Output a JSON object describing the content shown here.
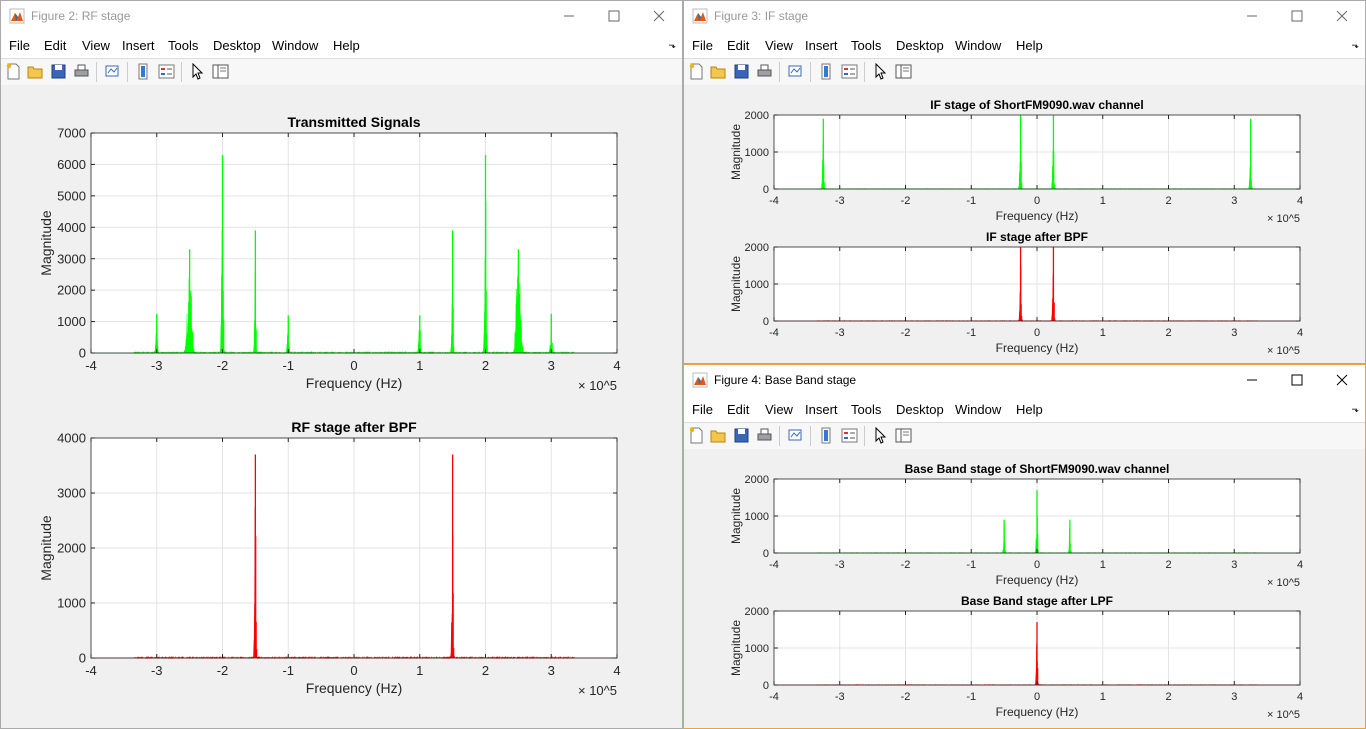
{
  "menu_labels": [
    "File",
    "Edit",
    "View",
    "Insert",
    "Tools",
    "Desktop",
    "Window",
    "Help"
  ],
  "colors": {
    "green": "#00ff00",
    "red": "#ff0000",
    "axis": "#262626",
    "grid": "#e3e3e3"
  },
  "windows": [
    {
      "title": "Figure 2: RF stage",
      "icon": "matlab-icon"
    },
    {
      "title": "Figure 3: IF stage",
      "icon": "matlab-icon"
    },
    {
      "title": "Figure 4: Base Band stage",
      "icon": "matlab-icon"
    }
  ],
  "toolbar_icons": [
    "new-figure-icon",
    "open-file-icon",
    "save-icon",
    "print-icon",
    "link-plot-icon",
    "colorbar-icon",
    "legend-icon",
    "edit-plot-icon",
    "property-inspector-icon"
  ],
  "chart_data": [
    {
      "type": "line",
      "title": "Transmitted Signals",
      "xlabel": "Frequency (Hz)",
      "ylabel": "Magnitude",
      "xlim": [
        -4,
        4
      ],
      "ylim": [
        0,
        7000
      ],
      "xticks": [
        -4,
        -3,
        -2,
        -1,
        0,
        1,
        2,
        3,
        4
      ],
      "yticks": [
        0,
        1000,
        2000,
        3000,
        4000,
        5000,
        6000,
        7000
      ],
      "exponent": "× 10^5",
      "grid": true,
      "color": "green",
      "peaks": [
        {
          "x": -3.0,
          "y": 1250,
          "w": 0.05
        },
        {
          "x": -2.5,
          "y": 3300,
          "w": 0.12
        },
        {
          "x": -2.0,
          "y": 6300,
          "w": 0.05
        },
        {
          "x": -1.5,
          "y": 3900,
          "w": 0.04
        },
        {
          "x": -1.0,
          "y": 1200,
          "w": 0.05
        },
        {
          "x": 1.0,
          "y": 1200,
          "w": 0.05
        },
        {
          "x": 1.5,
          "y": 3900,
          "w": 0.04
        },
        {
          "x": 2.0,
          "y": 6300,
          "w": 0.05
        },
        {
          "x": 2.5,
          "y": 3300,
          "w": 0.12
        },
        {
          "x": 3.0,
          "y": 1250,
          "w": 0.05
        }
      ]
    },
    {
      "type": "line",
      "title": "RF stage after BPF",
      "xlabel": "Frequency (Hz)",
      "ylabel": "Magnitude",
      "xlim": [
        -4,
        4
      ],
      "ylim": [
        0,
        4000
      ],
      "xticks": [
        -4,
        -3,
        -2,
        -1,
        0,
        1,
        2,
        3,
        4
      ],
      "yticks": [
        0,
        1000,
        2000,
        3000,
        4000
      ],
      "exponent": "× 10^5",
      "grid": true,
      "color": "red",
      "peaks": [
        {
          "x": -1.5,
          "y": 3700,
          "w": 0.04
        },
        {
          "x": 1.5,
          "y": 3700,
          "w": 0.04
        }
      ]
    },
    {
      "type": "line",
      "title": "IF stage of ShortFM9090.wav channel",
      "xlabel": "Frequency (Hz)",
      "ylabel": "Magnitude",
      "xlim": [
        -4,
        4
      ],
      "ylim": [
        0,
        2000
      ],
      "xticks": [
        -4,
        -3,
        -2,
        -1,
        0,
        1,
        2,
        3,
        4
      ],
      "yticks": [
        0,
        1000,
        2000
      ],
      "exponent": "× 10^5",
      "grid": true,
      "color": "green",
      "peaks": [
        {
          "x": -3.25,
          "y": 1900,
          "w": 0.04
        },
        {
          "x": -0.25,
          "y": 2100,
          "w": 0.04
        },
        {
          "x": 0.25,
          "y": 2100,
          "w": 0.04
        },
        {
          "x": 3.25,
          "y": 1900,
          "w": 0.04
        }
      ]
    },
    {
      "type": "line",
      "title": "IF stage after BPF",
      "xlabel": "Frequency (Hz)",
      "ylabel": "Magnitude",
      "xlim": [
        -4,
        4
      ],
      "ylim": [
        0,
        2000
      ],
      "xticks": [
        -4,
        -3,
        -2,
        -1,
        0,
        1,
        2,
        3,
        4
      ],
      "yticks": [
        0,
        1000,
        2000
      ],
      "exponent": "× 10^5",
      "grid": true,
      "color": "red",
      "peaks": [
        {
          "x": -0.25,
          "y": 2000,
          "w": 0.04
        },
        {
          "x": 0.25,
          "y": 2000,
          "w": 0.04
        }
      ]
    },
    {
      "type": "line",
      "title": "Base Band stage of ShortFM9090.wav channel",
      "xlabel": "Frequency (Hz)",
      "ylabel": "Magnitude",
      "xlim": [
        -4,
        4
      ],
      "ylim": [
        0,
        2000
      ],
      "xticks": [
        -4,
        -3,
        -2,
        -1,
        0,
        1,
        2,
        3,
        4
      ],
      "yticks": [
        0,
        1000,
        2000
      ],
      "exponent": "× 10^5",
      "grid": true,
      "color": "green",
      "peaks": [
        {
          "x": -0.5,
          "y": 900,
          "w": 0.04
        },
        {
          "x": 0.0,
          "y": 1700,
          "w": 0.04
        },
        {
          "x": 0.5,
          "y": 900,
          "w": 0.04
        }
      ]
    },
    {
      "type": "line",
      "title": "Base Band stage after LPF",
      "xlabel": "Frequency (Hz)",
      "ylabel": "Magnitude",
      "xlim": [
        -4,
        4
      ],
      "ylim": [
        0,
        2000
      ],
      "xticks": [
        -4,
        -3,
        -2,
        -1,
        0,
        1,
        2,
        3,
        4
      ],
      "yticks": [
        0,
        1000,
        2000
      ],
      "exponent": "× 10^5",
      "grid": true,
      "color": "red",
      "peaks": [
        {
          "x": 0.0,
          "y": 1700,
          "w": 0.04
        }
      ]
    }
  ]
}
